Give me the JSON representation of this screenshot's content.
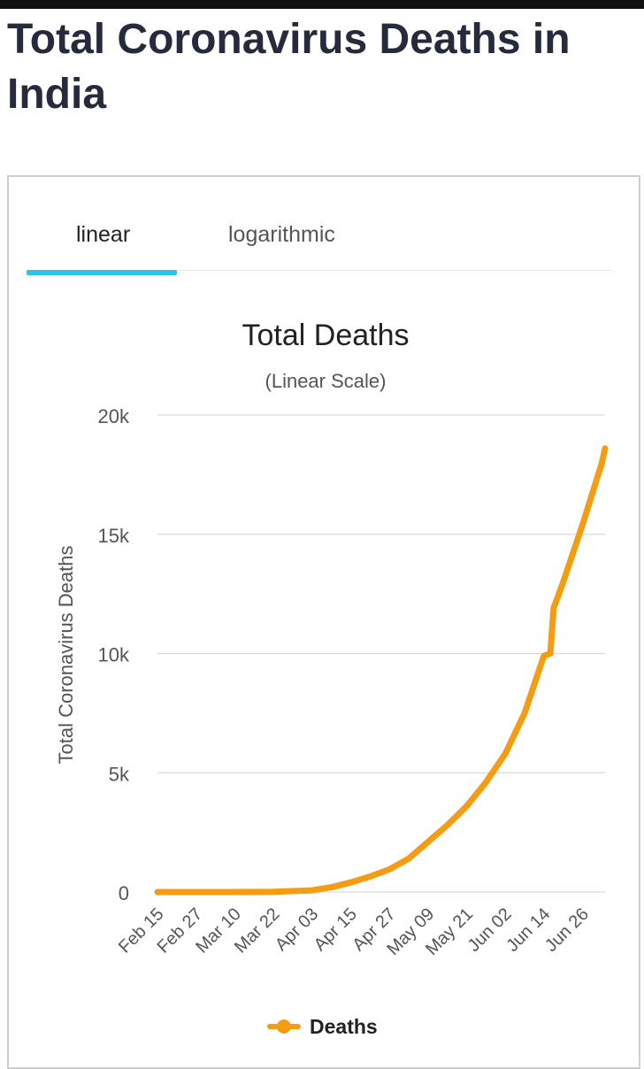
{
  "page": {
    "title": "Total Coronavirus Deaths in India"
  },
  "tabs": [
    {
      "label": "linear"
    },
    {
      "label": "logarithmic"
    }
  ],
  "colors": {
    "series": "#f59d12",
    "tab_indicator": "#2cc4e8",
    "grid": "#d9d9d9"
  },
  "chart_data": {
    "type": "line",
    "title": "Total Deaths",
    "subtitle": "(Linear Scale)",
    "ylabel": "Total Coronavirus Deaths",
    "xlabel": "",
    "ylim": [
      0,
      20000
    ],
    "yticks": [
      0,
      5000,
      10000,
      15000,
      20000
    ],
    "ytick_labels": [
      "0",
      "5k",
      "10k",
      "15k",
      "20k"
    ],
    "xticks": [
      "Feb 15",
      "Feb 27",
      "Mar 10",
      "Mar 22",
      "Apr 03",
      "Apr 15",
      "Apr 27",
      "May 09",
      "May 21",
      "Jun 02",
      "Jun 14",
      "Jun 26"
    ],
    "grid": true,
    "legend": "bottom",
    "series": [
      {
        "name": "Deaths",
        "x": [
          "Feb 15",
          "Mar 10",
          "Mar 22",
          "Apr 03",
          "Apr 09",
          "Apr 15",
          "Apr 21",
          "Apr 27",
          "May 03",
          "May 09",
          "May 15",
          "May 21",
          "May 27",
          "Jun 02",
          "Jun 08",
          "Jun 14",
          "Jun 16",
          "Jun 17",
          "Jun 20",
          "Jun 26",
          "Jul 02",
          "Jul 03"
        ],
        "y": [
          0,
          0,
          10,
          70,
          200,
          400,
          650,
          950,
          1400,
          2100,
          2800,
          3600,
          4600,
          5800,
          7500,
          9900,
          10000,
          11900,
          13000,
          15400,
          18000,
          18600
        ]
      }
    ]
  },
  "legend": {
    "label": "Deaths"
  }
}
